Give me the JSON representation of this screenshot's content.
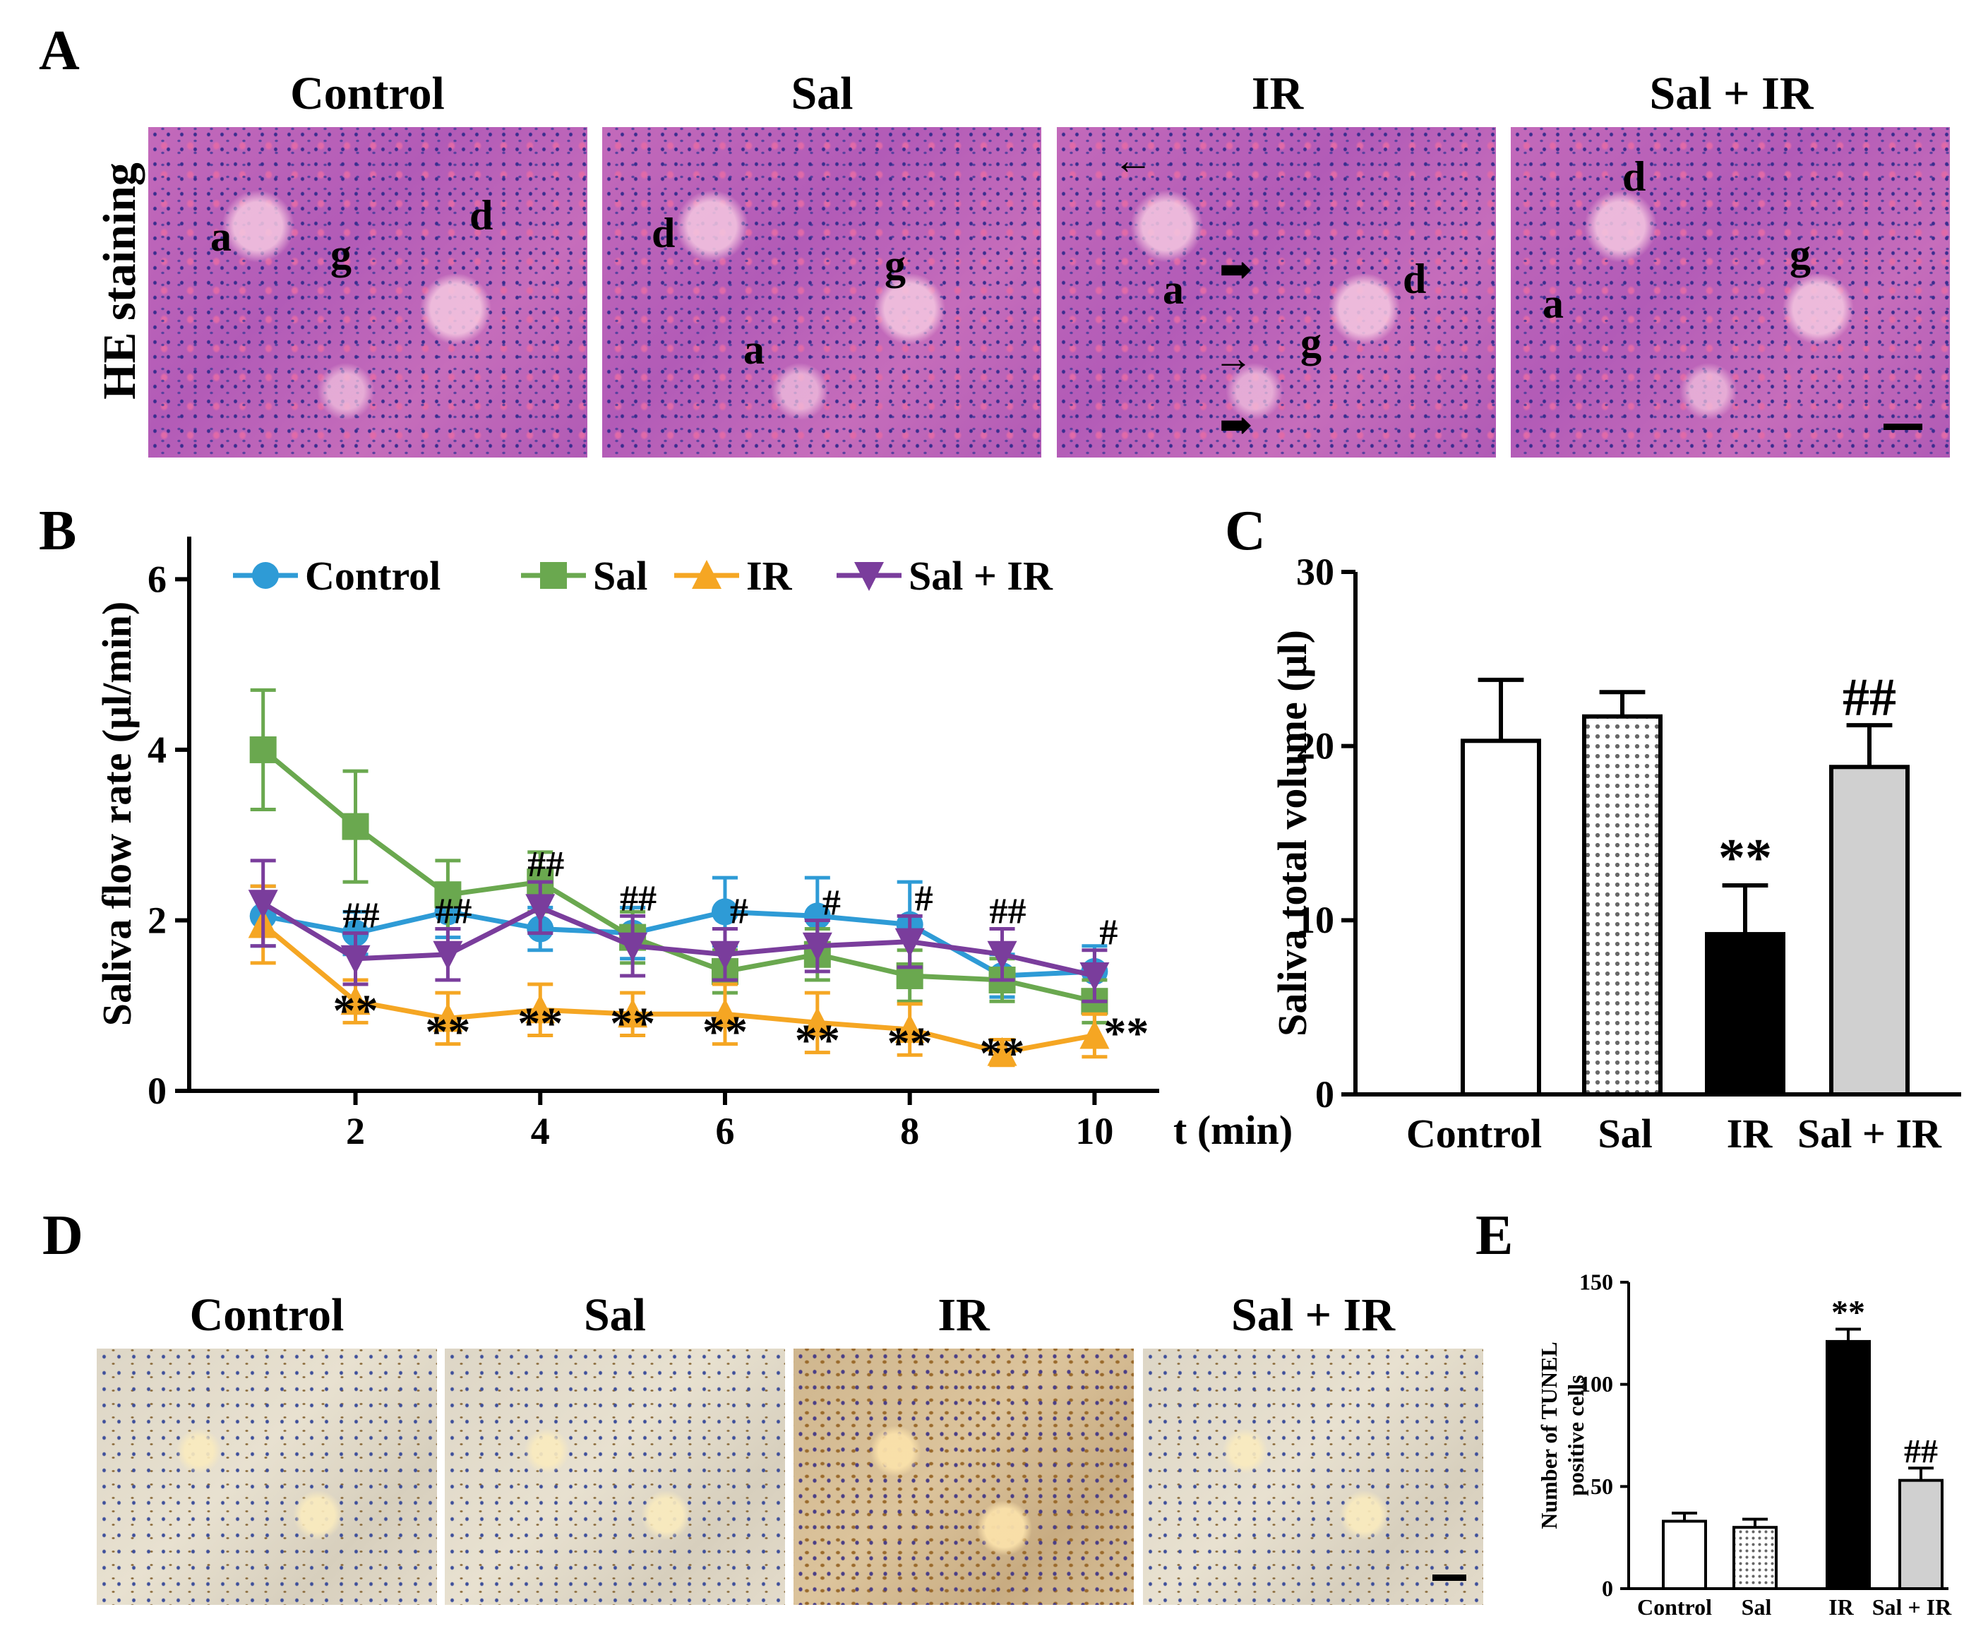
{
  "panel_a": {
    "label": "A",
    "row_label": "HE staining",
    "columns": [
      "Control",
      "Sal",
      "IR",
      "Sal + IR"
    ],
    "tissue_letters": [
      "a",
      "g",
      "d"
    ]
  },
  "panel_d": {
    "label": "D",
    "columns": [
      "Control",
      "Sal",
      "IR",
      "Sal + IR"
    ]
  },
  "colors": {
    "control": "#2e9bd6",
    "sal": "#6aa84f",
    "ir": "#f5a623",
    "sal_ir": "#7a3d9c",
    "bar_sal_ir": "#d0d0d0"
  },
  "chart_data": [
    {
      "id": "B",
      "panel_label": "B",
      "type": "line",
      "xlabel": "t (min)",
      "ylabel": "Saliva flow rate (μl/min)",
      "xlim": [
        0.2,
        10.7
      ],
      "ylim": [
        0,
        6.5
      ],
      "xticks": [
        2,
        4,
        6,
        8,
        10
      ],
      "yticks": [
        0,
        2,
        4,
        6
      ],
      "x": [
        1,
        2,
        3,
        4,
        5,
        6,
        7,
        8,
        9,
        10
      ],
      "series": [
        {
          "name": "Control",
          "marker": "circle",
          "values": [
            2.05,
            1.85,
            2.1,
            1.9,
            1.85,
            2.1,
            2.05,
            1.95,
            1.35,
            1.4
          ],
          "errors": [
            0.35,
            0.25,
            0.3,
            0.25,
            0.3,
            0.4,
            0.45,
            0.5,
            0.25,
            0.3
          ]
        },
        {
          "name": "Sal",
          "marker": "square",
          "values": [
            4.0,
            3.1,
            2.3,
            2.45,
            1.8,
            1.4,
            1.6,
            1.35,
            1.3,
            1.05
          ],
          "errors": [
            0.7,
            0.65,
            0.4,
            0.35,
            0.3,
            0.25,
            0.3,
            0.3,
            0.25,
            0.25
          ]
        },
        {
          "name": "IR",
          "marker": "triangle-up",
          "values": [
            1.95,
            1.05,
            0.85,
            0.95,
            0.9,
            0.9,
            0.8,
            0.72,
            0.45,
            0.65
          ],
          "errors": [
            0.45,
            0.25,
            0.3,
            0.3,
            0.25,
            0.35,
            0.35,
            0.3,
            0.15,
            0.25
          ]
        },
        {
          "name": "Sal + IR",
          "marker": "triangle-down",
          "values": [
            2.2,
            1.55,
            1.6,
            2.15,
            1.7,
            1.6,
            1.7,
            1.75,
            1.6,
            1.35
          ],
          "errors": [
            0.5,
            0.3,
            0.3,
            0.3,
            0.35,
            0.3,
            0.3,
            0.3,
            0.3,
            0.3
          ]
        }
      ],
      "annotations": [
        {
          "x": 2,
          "text": "##",
          "above": "Sal + IR"
        },
        {
          "x": 3,
          "text": "##",
          "above": "Sal + IR"
        },
        {
          "x": 4,
          "text": "##",
          "above": "Sal + IR"
        },
        {
          "x": 5,
          "text": "##",
          "above": "Sal + IR"
        },
        {
          "x": 6,
          "text": "#",
          "above": "Sal + IR"
        },
        {
          "x": 7,
          "text": "#",
          "above": "Sal + IR"
        },
        {
          "x": 8,
          "text": "#",
          "above": "Sal + IR"
        },
        {
          "x": 9,
          "text": "##",
          "above": "Sal + IR"
        },
        {
          "x": 10,
          "text": "#",
          "above": "Sal + IR"
        },
        {
          "x": 2,
          "text": "**",
          "below": "IR"
        },
        {
          "x": 3,
          "text": "**",
          "below": "IR"
        },
        {
          "x": 4,
          "text": "**",
          "below": "IR"
        },
        {
          "x": 5,
          "text": "**",
          "below": "IR"
        },
        {
          "x": 6,
          "text": "**",
          "below": "IR"
        },
        {
          "x": 7,
          "text": "**",
          "below": "IR"
        },
        {
          "x": 8,
          "text": "**",
          "below": "IR"
        },
        {
          "x": 9,
          "text": "**",
          "below": "IR"
        },
        {
          "x": 10,
          "text": "**",
          "below": "IR"
        }
      ],
      "legend": "top"
    },
    {
      "id": "C",
      "panel_label": "C",
      "type": "bar",
      "ylabel": "Saliva total volume (μl)",
      "ylim": [
        0,
        30
      ],
      "yticks": [
        0,
        10,
        20,
        30
      ],
      "categories": [
        "Control",
        "Sal",
        "IR",
        "Sal + IR"
      ],
      "values": [
        20.3,
        21.7,
        9.2,
        18.8
      ],
      "errors": [
        3.5,
        1.4,
        2.8,
        2.4
      ],
      "fills": [
        "white",
        "dots",
        "black",
        "grey"
      ],
      "annotations": [
        "",
        "",
        "**",
        "##"
      ]
    },
    {
      "id": "E",
      "panel_label": "E",
      "type": "bar",
      "ylabel": "Number of TUNEL positive cells",
      "ylim": [
        0,
        150
      ],
      "yticks": [
        0,
        50,
        100,
        150
      ],
      "categories": [
        "Control",
        "Sal",
        "IR",
        "Sal + IR"
      ],
      "values": [
        33,
        30,
        121,
        53
      ],
      "errors": [
        4,
        4,
        6,
        6
      ],
      "fills": [
        "white",
        "dots",
        "black",
        "grey"
      ],
      "annotations": [
        "",
        "",
        "**",
        "##"
      ]
    }
  ]
}
